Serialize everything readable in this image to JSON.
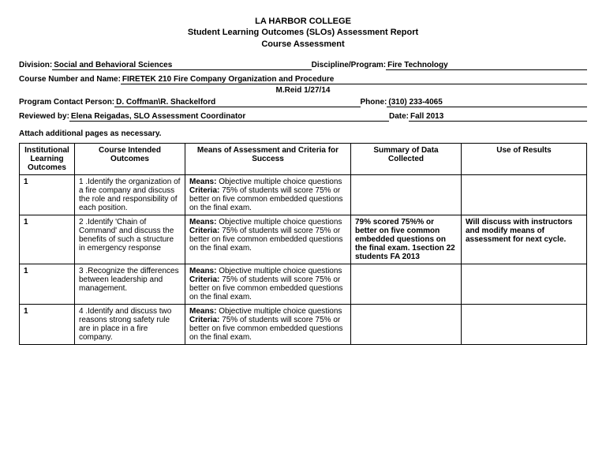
{
  "header": {
    "line1": "LA HARBOR COLLEGE",
    "line2": "Student Learning Outcomes (SLOs) Assessment Report",
    "line3": "Course Assessment"
  },
  "fields": {
    "division_label": "Division:",
    "division_value": "Social and Behavioral Sciences",
    "discipline_label": "Discipline/Program:",
    "discipline_value": "Fire Technology",
    "course_label": "Course Number and Name:",
    "course_value": "FIRETEK 210 Fire Company Organization and Procedure",
    "course_sub": "M.Reid 1/27/14",
    "contact_label": "Program Contact Person:",
    "contact_value": "D. Coffman\\R. Shackelford",
    "phone_label": "Phone:",
    "phone_value": "(310) 233-4065",
    "reviewed_label": "Reviewed by:",
    "reviewed_value": "Elena Reigadas, SLO Assessment Coordinator",
    "date_label": "Date:",
    "date_value": "Fall 2013",
    "attach_note": "Attach additional pages as necessary."
  },
  "table": {
    "headers": {
      "ilo": "Institutional Learning Outcomes",
      "cio": "Course Intended Outcomes",
      "means": "Means of Assessment and Criteria for Success",
      "summary": "Summary of Data Collected",
      "results": "Use of Results"
    },
    "means_prefix": "Means:",
    "criteria_prefix": "Criteria:",
    "means_text": " Objective multiple choice questions",
    "criteria_text": "  75% of students will score 75% or better on five common embedded questions on the final exam.",
    "rows": [
      {
        "ilo": "1",
        "cio": "1 .Identify the organization of a fire company and discuss the role and responsibility of each position.",
        "summary": "",
        "results": ""
      },
      {
        "ilo": "1",
        "cio": "2 .Identify 'Chain of Command' and discuss the benefits of such a structure in emergency response",
        "summary": "79% scored 75%% or better on five common embedded questions on the final exam. 1section 22 students FA 2013",
        "results": "Will discuss with instructors and modify means of assessment for next cycle."
      },
      {
        "ilo": "1",
        "cio": "3 .Recognize the differences between leadership and management.",
        "summary": "",
        "results": ""
      },
      {
        "ilo": "1",
        "cio": "4 .Identify and discuss two reasons strong safety rule are in place in a fire company.",
        "summary": "",
        "results": ""
      }
    ]
  }
}
